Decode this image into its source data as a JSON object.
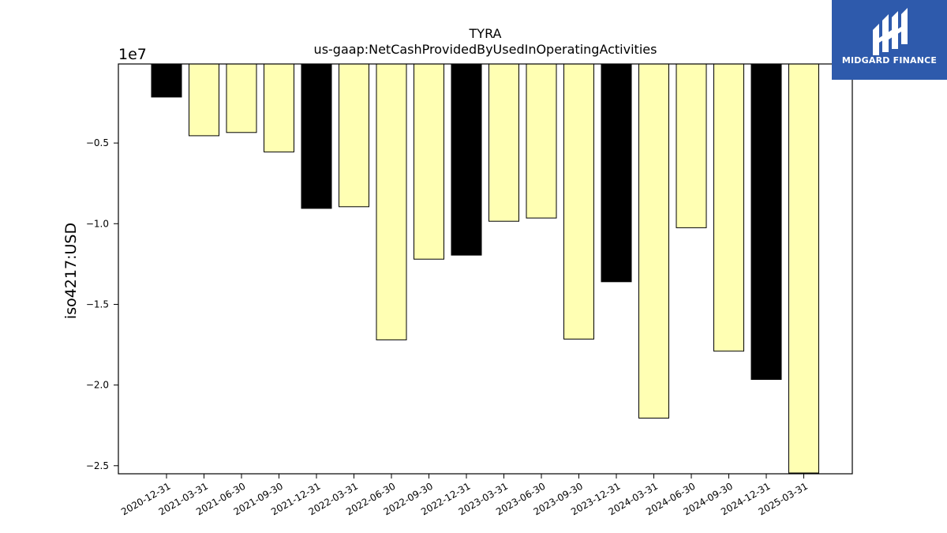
{
  "chart_data": {
    "type": "bar",
    "title": "TYRA",
    "subtitle": "us-gaap:NetCashProvidedByUsedInOperatingActivities",
    "ylabel": "iso4217:USD",
    "offset_label": "1e7",
    "ylim": [
      -25500000,
      -100000
    ],
    "yticks": [
      -5000000,
      -10000000,
      -15000000,
      -20000000,
      -25000000
    ],
    "ytick_labels": [
      "−0.5",
      "−1.0",
      "−1.5",
      "−2.0",
      "−2.5"
    ],
    "categories": [
      "2020-12-31",
      "2021-03-31",
      "2021-06-30",
      "2021-09-30",
      "2021-12-31",
      "2022-03-31",
      "2022-06-30",
      "2022-09-30",
      "2022-12-31",
      "2023-03-31",
      "2023-06-30",
      "2023-09-30",
      "2023-12-31",
      "2024-03-31",
      "2024-06-30",
      "2024-09-30",
      "2024-12-31",
      "2025-03-31"
    ],
    "values": [
      -2150000,
      -4550000,
      -4350000,
      -5550000,
      -9050000,
      -8950000,
      -17200000,
      -12200000,
      -11950000,
      -9850000,
      -9650000,
      -17150000,
      -13600000,
      -22050000,
      -10250000,
      -17900000,
      -19650000,
      -25450000
    ],
    "bar_colors": [
      "#000000",
      "#ffffb3",
      "#ffffb3",
      "#ffffb3",
      "#000000",
      "#ffffb3",
      "#ffffb3",
      "#ffffb3",
      "#000000",
      "#ffffb3",
      "#ffffb3",
      "#ffffb3",
      "#000000",
      "#ffffb3",
      "#ffffb3",
      "#ffffb3",
      "#000000",
      "#ffffb3"
    ],
    "grid": false
  },
  "logo": {
    "text": "MIDGARD FINANCE",
    "background": "#2e5aac",
    "color": "#ffffff"
  }
}
